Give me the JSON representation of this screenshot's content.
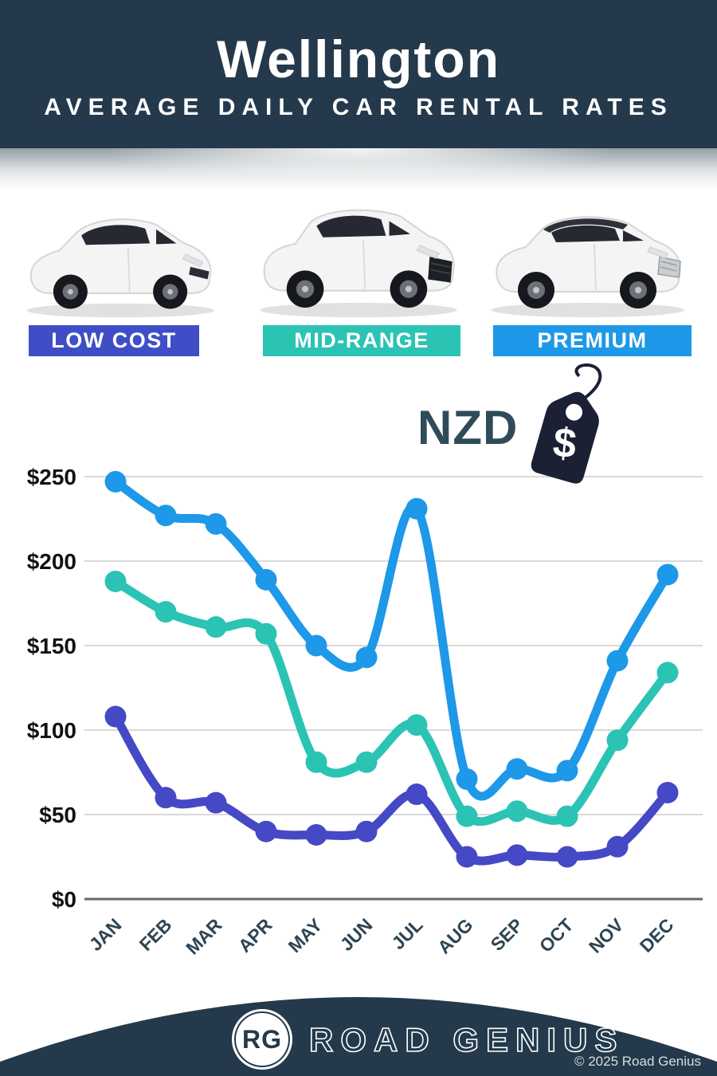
{
  "header": {
    "title": "Wellington",
    "subtitle": "AVERAGE DAILY CAR RENTAL RATES"
  },
  "categories": [
    {
      "label": "LOW COST",
      "color": "#3F4EC7"
    },
    {
      "label": "MID-RANGE",
      "color": "#2BC3B4"
    },
    {
      "label": "PREMIUM",
      "color": "#1E98E8"
    }
  ],
  "currency": {
    "label": "NZD",
    "tag_color": "#1B2035"
  },
  "chart_data": {
    "type": "line",
    "title": "Wellington Average Daily Car Rental Rates (NZD)",
    "categories": [
      "JAN",
      "FEB",
      "MAR",
      "APR",
      "MAY",
      "JUN",
      "JUL",
      "AUG",
      "SEP",
      "OCT",
      "NOV",
      "DEC"
    ],
    "series": [
      {
        "name": "MID-RANGE",
        "color": "#2BC3B4",
        "values": [
          188,
          170,
          161,
          157,
          81,
          81,
          103,
          49,
          52,
          49,
          94,
          134
        ]
      },
      {
        "name": "PREMIUM",
        "color": "#1E98E8",
        "values": [
          247,
          227,
          222,
          189,
          150,
          143,
          231,
          71,
          77,
          76,
          141,
          192
        ]
      },
      {
        "name": "LOW COST",
        "color": "#4549C5",
        "values": [
          108,
          60,
          57,
          40,
          38,
          40,
          62,
          25,
          26,
          25,
          31,
          63
        ]
      }
    ],
    "ylim": [
      0,
      250
    ],
    "ytick_step": 50,
    "ytick_labels": [
      "$0",
      "$50",
      "$100",
      "$150",
      "$200",
      "$250"
    ],
    "grid": true,
    "grid_color": "#d9d9d9",
    "axis_color": "#63696f",
    "ytick_color": "#111111",
    "xtick_color": "#2E4452",
    "legend_position": "category-bars-above-chart"
  },
  "footer": {
    "logo_text": "RG",
    "brand": "ROAD GENIUS",
    "copyright": "© 2025 Road Genius"
  }
}
